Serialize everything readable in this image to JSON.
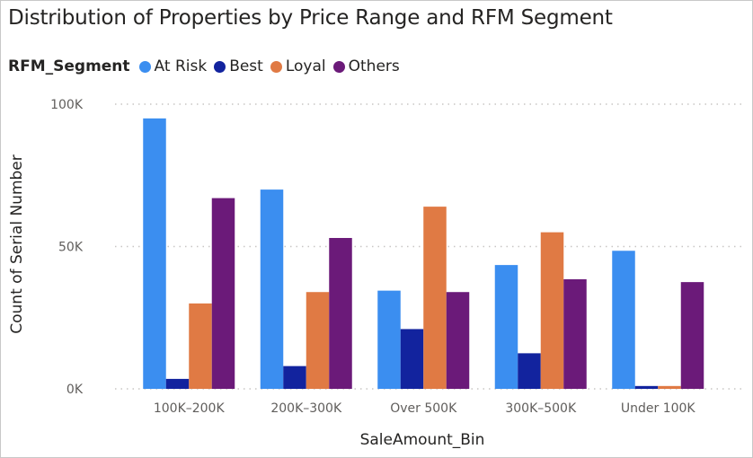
{
  "chart_data": {
    "type": "bar",
    "title": "Distribution of Properties by Price Range and RFM Segment",
    "legend_title": "RFM_Segment",
    "legend_position": "top-left",
    "xlabel": "SaleAmount_Bin",
    "ylabel": "Count of Serial Number",
    "categories": [
      "100K–200K",
      "200K–300K",
      "Over 500K",
      "300K–500K",
      "Under 100K"
    ],
    "ylim": [
      0,
      100000
    ],
    "yticks": [
      {
        "value": 0,
        "label": "0K"
      },
      {
        "value": 50000,
        "label": "50K"
      },
      {
        "value": 100000,
        "label": "100K"
      }
    ],
    "grid": true,
    "series": [
      {
        "name": "At Risk",
        "color": "#3b8ef0",
        "values": [
          95000,
          70000,
          34500,
          43500,
          48500
        ]
      },
      {
        "name": "Best",
        "color": "#12239e",
        "values": [
          3500,
          8000,
          21000,
          12500,
          1000
        ]
      },
      {
        "name": "Loyal",
        "color": "#e07a44",
        "values": [
          30000,
          34000,
          64000,
          55000,
          1000
        ]
      },
      {
        "name": "Others",
        "color": "#6b1a79",
        "values": [
          67000,
          53000,
          34000,
          38500,
          37500
        ]
      }
    ]
  }
}
